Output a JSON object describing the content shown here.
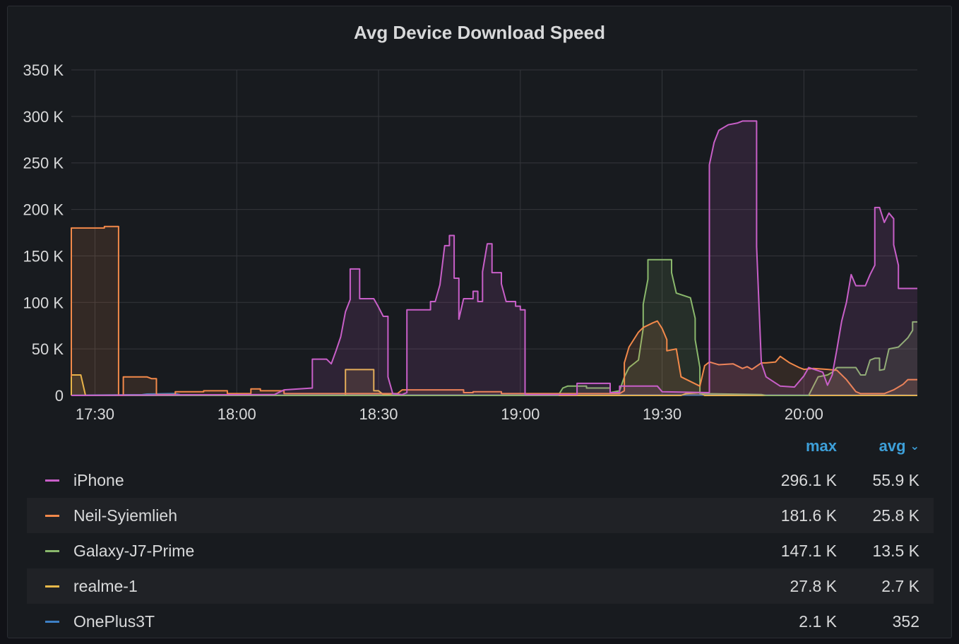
{
  "panel": {
    "title": "Avg Device Download Speed"
  },
  "legend": {
    "headers": {
      "max": "max",
      "avg": "avg",
      "sort_icon": "chevron-down-icon"
    },
    "rows": [
      {
        "name": "iPhone",
        "color": "#c85fc8",
        "max": "296.1 K",
        "avg": "55.9 K"
      },
      {
        "name": "Neil-Syiemlieh",
        "color": "#f2894a",
        "max": "181.6 K",
        "avg": "25.8 K"
      },
      {
        "name": "Galaxy-J7-Prime",
        "color": "#8ab86c",
        "max": "147.1 K",
        "avg": "13.5 K"
      },
      {
        "name": "realme-1",
        "color": "#e8b94a",
        "max": "27.8 K",
        "avg": "2.7 K"
      },
      {
        "name": "OnePlus3T",
        "color": "#3d7fc4",
        "max": "2.1 K",
        "avg": "352"
      }
    ]
  },
  "chart_data": {
    "type": "area",
    "title": "Avg Device Download Speed",
    "xlabel": "",
    "ylabel": "",
    "x_ticks": [
      "17:30",
      "18:00",
      "18:30",
      "19:00",
      "19:30",
      "20:00"
    ],
    "x_tick_minutes": [
      1050,
      1080,
      1110,
      1140,
      1170,
      1200
    ],
    "xlim": [
      "17:25",
      "20:24"
    ],
    "y_ticks": [
      "0",
      "50 K",
      "100 K",
      "150 K",
      "200 K",
      "250 K",
      "300 K",
      "350 K"
    ],
    "ylim": [
      0,
      350000
    ],
    "grid": true,
    "legend_position": "bottom",
    "series": [
      {
        "name": "iPhone",
        "color": "#c85fc8",
        "points": [
          [
            "17:25",
            0
          ],
          [
            "18:08",
            1000
          ],
          [
            "18:10",
            6000
          ],
          [
            "18:16",
            8000
          ],
          [
            "18:16",
            39000
          ],
          [
            "18:19",
            39000
          ],
          [
            "18:20",
            34000
          ],
          [
            "18:21",
            48000
          ],
          [
            "18:22",
            63000
          ],
          [
            "18:23",
            90000
          ],
          [
            "18:24",
            103000
          ],
          [
            "18:24",
            136000
          ],
          [
            "18:26",
            136000
          ],
          [
            "18:26",
            104000
          ],
          [
            "18:29",
            104000
          ],
          [
            "18:30",
            95000
          ],
          [
            "18:31",
            85000
          ],
          [
            "18:32",
            85000
          ],
          [
            "18:32",
            20000
          ],
          [
            "18:33",
            2000
          ],
          [
            "18:35",
            1000
          ],
          [
            "18:36",
            3000
          ],
          [
            "18:36",
            92000
          ],
          [
            "18:41",
            92000
          ],
          [
            "18:41",
            101000
          ],
          [
            "18:42",
            101000
          ],
          [
            "18:43",
            119000
          ],
          [
            "18:44",
            161000
          ],
          [
            "18:45",
            161000
          ],
          [
            "18:45",
            172000
          ],
          [
            "18:46",
            172000
          ],
          [
            "18:46",
            126000
          ],
          [
            "18:47",
            126000
          ],
          [
            "18:47",
            82000
          ],
          [
            "18:48",
            104000
          ],
          [
            "18:50",
            104000
          ],
          [
            "18:50",
            112000
          ],
          [
            "18:51",
            112000
          ],
          [
            "18:51",
            101000
          ],
          [
            "18:52",
            101000
          ],
          [
            "18:52",
            133000
          ],
          [
            "18:53",
            163000
          ],
          [
            "18:54",
            163000
          ],
          [
            "18:54",
            132000
          ],
          [
            "18:56",
            132000
          ],
          [
            "18:56",
            120000
          ],
          [
            "18:57",
            101000
          ],
          [
            "18:59",
            101000
          ],
          [
            "18:59",
            96000
          ],
          [
            "19:00",
            96000
          ],
          [
            "19:00",
            92000
          ],
          [
            "19:01",
            92000
          ],
          [
            "19:01",
            1000
          ],
          [
            "19:10",
            1000
          ],
          [
            "19:12",
            1000
          ],
          [
            "19:12",
            13000
          ],
          [
            "19:19",
            13000
          ],
          [
            "19:19",
            3000
          ],
          [
            "19:21",
            3000
          ],
          [
            "19:21",
            10000
          ],
          [
            "19:29",
            10000
          ],
          [
            "19:30",
            4000
          ],
          [
            "19:40",
            3000
          ],
          [
            "19:40",
            140000
          ],
          [
            "19:40",
            248000
          ],
          [
            "19:41",
            272000
          ],
          [
            "19:42",
            285000
          ],
          [
            "19:44",
            291000
          ],
          [
            "19:46",
            293000
          ],
          [
            "19:47",
            295000
          ],
          [
            "19:50",
            295000
          ],
          [
            "19:50",
            160000
          ],
          [
            "19:51",
            35000
          ],
          [
            "19:52",
            20000
          ],
          [
            "19:55",
            10000
          ],
          [
            "19:58",
            9000
          ],
          [
            "20:00",
            21000
          ],
          [
            "20:01",
            30000
          ],
          [
            "20:04",
            25000
          ],
          [
            "20:05",
            11000
          ],
          [
            "20:06",
            22000
          ],
          [
            "20:07",
            50000
          ],
          [
            "20:08",
            80000
          ],
          [
            "20:09",
            100000
          ],
          [
            "20:10",
            130000
          ],
          [
            "20:11",
            118000
          ],
          [
            "20:13",
            118000
          ],
          [
            "20:14",
            130000
          ],
          [
            "20:15",
            140000
          ],
          [
            "20:15",
            202000
          ],
          [
            "20:16",
            202000
          ],
          [
            "20:17",
            186000
          ],
          [
            "20:18",
            196000
          ],
          [
            "20:19",
            190000
          ],
          [
            "20:19",
            162000
          ],
          [
            "20:20",
            140000
          ],
          [
            "20:20",
            115000
          ],
          [
            "20:24",
            115000
          ]
        ]
      },
      {
        "name": "Neil-Syiemlieh",
        "color": "#f2894a",
        "points": [
          [
            "17:25",
            20000
          ],
          [
            "17:25",
            180000
          ],
          [
            "17:32",
            180000
          ],
          [
            "17:32",
            181600
          ],
          [
            "17:35",
            181600
          ],
          [
            "17:35",
            0
          ],
          [
            "17:36",
            0
          ],
          [
            "17:36",
            20000
          ],
          [
            "17:41",
            20000
          ],
          [
            "17:42",
            18000
          ],
          [
            "17:43",
            18000
          ],
          [
            "17:43",
            1000
          ],
          [
            "17:47",
            1000
          ],
          [
            "17:47",
            4000
          ],
          [
            "17:53",
            4000
          ],
          [
            "17:53",
            5000
          ],
          [
            "17:58",
            5000
          ],
          [
            "17:58",
            2000
          ],
          [
            "18:03",
            2000
          ],
          [
            "18:03",
            7000
          ],
          [
            "18:05",
            7000
          ],
          [
            "18:05",
            5000
          ],
          [
            "18:10",
            5000
          ],
          [
            "18:10",
            2000
          ],
          [
            "18:34",
            2000
          ],
          [
            "18:35",
            6000
          ],
          [
            "18:48",
            6000
          ],
          [
            "18:48",
            3000
          ],
          [
            "18:50",
            3000
          ],
          [
            "18:50",
            4000
          ],
          [
            "18:56",
            4000
          ],
          [
            "18:56",
            2000
          ],
          [
            "19:21",
            2000
          ],
          [
            "19:22",
            5000
          ],
          [
            "19:22",
            35000
          ],
          [
            "19:23",
            52000
          ],
          [
            "19:25",
            68000
          ],
          [
            "19:26",
            73000
          ],
          [
            "19:28",
            78000
          ],
          [
            "19:29",
            80000
          ],
          [
            "19:30",
            72000
          ],
          [
            "19:31",
            60000
          ],
          [
            "19:31",
            48000
          ],
          [
            "19:33",
            50000
          ],
          [
            "19:34",
            20000
          ],
          [
            "19:38",
            10000
          ],
          [
            "19:39",
            32000
          ],
          [
            "19:40",
            36000
          ],
          [
            "19:42",
            33000
          ],
          [
            "19:45",
            34000
          ],
          [
            "19:47",
            29000
          ],
          [
            "19:48",
            31000
          ],
          [
            "19:49",
            28000
          ],
          [
            "19:51",
            35000
          ],
          [
            "19:52",
            35000
          ],
          [
            "19:54",
            36000
          ],
          [
            "19:55",
            42000
          ],
          [
            "19:57",
            35000
          ],
          [
            "19:59",
            30000
          ],
          [
            "20:00",
            28000
          ],
          [
            "20:02",
            29000
          ],
          [
            "20:05",
            28000
          ],
          [
            "20:07",
            27000
          ],
          [
            "20:09",
            17000
          ],
          [
            "20:11",
            4000
          ],
          [
            "20:12",
            2000
          ],
          [
            "20:15",
            2000
          ],
          [
            "20:17",
            2000
          ],
          [
            "20:19",
            6000
          ],
          [
            "20:21",
            12000
          ],
          [
            "20:22",
            17000
          ],
          [
            "20:24",
            17000
          ]
        ]
      },
      {
        "name": "Galaxy-J7-Prime",
        "color": "#8ab86c",
        "points": [
          [
            "17:25",
            0
          ],
          [
            "19:08",
            0
          ],
          [
            "19:09",
            8000
          ],
          [
            "19:10",
            10000
          ],
          [
            "19:14",
            10000
          ],
          [
            "19:14",
            8000
          ],
          [
            "19:19",
            8000
          ],
          [
            "19:19",
            3000
          ],
          [
            "19:21",
            5000
          ],
          [
            "19:22",
            20000
          ],
          [
            "19:23",
            30000
          ],
          [
            "19:25",
            38000
          ],
          [
            "19:26",
            72000
          ],
          [
            "19:26",
            98000
          ],
          [
            "19:27",
            125000
          ],
          [
            "19:27",
            146000
          ],
          [
            "19:32",
            146000
          ],
          [
            "19:32",
            132000
          ],
          [
            "19:33",
            110000
          ],
          [
            "19:36",
            105000
          ],
          [
            "19:37",
            83000
          ],
          [
            "19:37",
            60000
          ],
          [
            "19:38",
            30000
          ],
          [
            "19:38",
            2000
          ],
          [
            "19:51",
            1000
          ],
          [
            "19:52",
            0
          ],
          [
            "20:01",
            0
          ],
          [
            "20:02",
            10000
          ],
          [
            "20:03",
            20000
          ],
          [
            "20:05",
            22000
          ],
          [
            "20:06",
            25000
          ],
          [
            "20:07",
            30000
          ],
          [
            "20:11",
            30000
          ],
          [
            "20:12",
            22000
          ],
          [
            "20:13",
            22000
          ],
          [
            "20:14",
            38000
          ],
          [
            "20:15",
            40000
          ],
          [
            "20:16",
            40000
          ],
          [
            "20:16",
            27000
          ],
          [
            "20:17",
            28000
          ],
          [
            "20:18",
            50000
          ],
          [
            "20:20",
            52000
          ],
          [
            "20:21",
            57000
          ],
          [
            "20:22",
            62000
          ],
          [
            "20:23",
            70000
          ],
          [
            "20:23",
            79000
          ],
          [
            "20:24",
            79000
          ]
        ]
      },
      {
        "name": "realme-1",
        "color": "#e8b94a",
        "points": [
          [
            "17:25",
            0
          ],
          [
            "17:25",
            22000
          ],
          [
            "17:27",
            22000
          ],
          [
            "17:28",
            0
          ],
          [
            "18:23",
            0
          ],
          [
            "18:23",
            27800
          ],
          [
            "18:29",
            27800
          ],
          [
            "18:29",
            5000
          ],
          [
            "18:30",
            5000
          ],
          [
            "18:31",
            1000
          ],
          [
            "18:32",
            1000
          ],
          [
            "18:33",
            0
          ],
          [
            "19:34",
            0
          ],
          [
            "19:35",
            2000
          ],
          [
            "19:38",
            3000
          ],
          [
            "19:39",
            0
          ],
          [
            "20:24",
            0
          ]
        ]
      },
      {
        "name": "OnePlus3T",
        "color": "#3d7fc4",
        "points": [
          [
            "17:25",
            200
          ],
          [
            "17:40",
            800
          ],
          [
            "17:41",
            1500
          ],
          [
            "17:47",
            2100
          ],
          [
            "17:48",
            800
          ],
          [
            "18:00",
            300
          ],
          [
            "18:30",
            400
          ],
          [
            "19:00",
            350
          ],
          [
            "19:07",
            1800
          ],
          [
            "19:10",
            300
          ],
          [
            "19:30",
            400
          ],
          [
            "20:00",
            300
          ],
          [
            "20:24",
            200
          ]
        ]
      }
    ]
  }
}
